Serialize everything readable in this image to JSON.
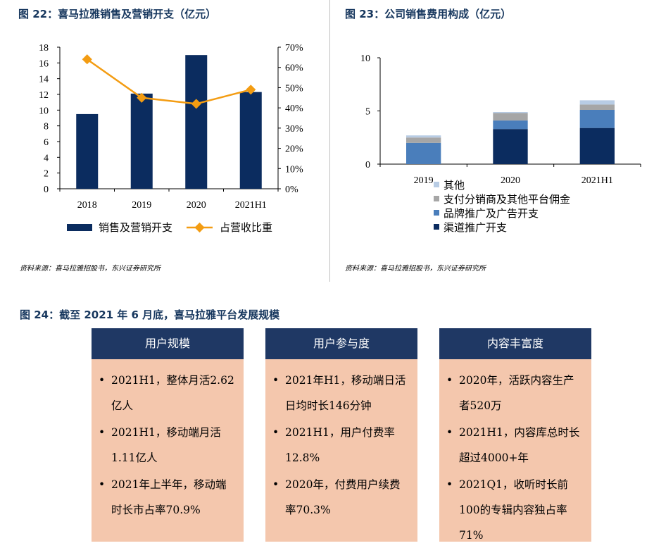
{
  "fig22": {
    "title": "图 22：喜马拉雅销售及营销开支（亿元）",
    "source": "资料来源：喜马拉雅招股书，东兴证券研究所"
  },
  "fig23": {
    "title": "图 23：公司销售费用构成（亿元）",
    "source": "资料来源：喜马拉雅招股书，东兴证券研究所"
  },
  "fig24": {
    "title": "图 24：截至 2021 年 6 月底，喜马拉雅平台发展规模",
    "panels": [
      {
        "header": "用户规模",
        "items": [
          "2021H1，整体月活2.62亿人",
          "2021H1，移动端月活1.11亿人",
          "2021年上半年，移动端时长市占率70.9%"
        ]
      },
      {
        "header": "用户参与度",
        "items": [
          "2021年H1，移动端日活日均时长146分钟",
          "2021H1，用户付费率12.8%",
          "2020年，付费用户续费率70.3%"
        ]
      },
      {
        "header": "内容丰富度",
        "items": [
          "2020年，活跃内容生产者520万",
          "2021H1，内容库总时长超过4000+年",
          "2021Q1，收听时长前100的专辑内容独占率71%"
        ]
      }
    ],
    "bullet": "•"
  },
  "colors": {
    "navy": "#0b2c5f",
    "orange": "#f39c12",
    "mid_blue": "#4a7ebb",
    "gray": "#a6a6a6",
    "light_blue": "#b8cce4",
    "panel_bg": "#f4c7ad",
    "panel_head": "#1f3864"
  },
  "chart_data": [
    {
      "type": "bar",
      "categories": [
        "2018",
        "2019",
        "2020",
        "2021H1"
      ],
      "series": [
        {
          "name": "销售及营销开支",
          "kind": "bar",
          "axis": "left",
          "values": [
            9.5,
            12.1,
            17.0,
            12.3
          ]
        },
        {
          "name": "占营收比重",
          "kind": "line",
          "axis": "right",
          "values": [
            64,
            45,
            42,
            49
          ]
        }
      ],
      "ylim": [
        0,
        18
      ],
      "yticks": [
        0,
        2,
        4,
        6,
        8,
        10,
        12,
        14,
        16,
        18
      ],
      "y2lim": [
        0,
        70
      ],
      "y2ticks": [
        "0%",
        "10%",
        "20%",
        "30%",
        "40%",
        "50%",
        "60%",
        "70%"
      ],
      "legend": "bottom"
    },
    {
      "type": "bar",
      "stacked": true,
      "categories": [
        "2019",
        "2020",
        "2021H1"
      ],
      "series": [
        {
          "name": "渠道推广开支",
          "values": [
            0,
            3.3,
            3.4
          ]
        },
        {
          "name": "品牌推广及广告开支",
          "values": [
            2.0,
            0.8,
            1.7
          ]
        },
        {
          "name": "支付分销商及其他平台佣金",
          "values": [
            0.5,
            0.7,
            0.5
          ]
        },
        {
          "name": "其他",
          "values": [
            0.2,
            0.1,
            0.4
          ]
        }
      ],
      "ylim": [
        0,
        10
      ],
      "yticks": [
        0,
        5,
        10
      ],
      "legend": "bottom"
    }
  ]
}
